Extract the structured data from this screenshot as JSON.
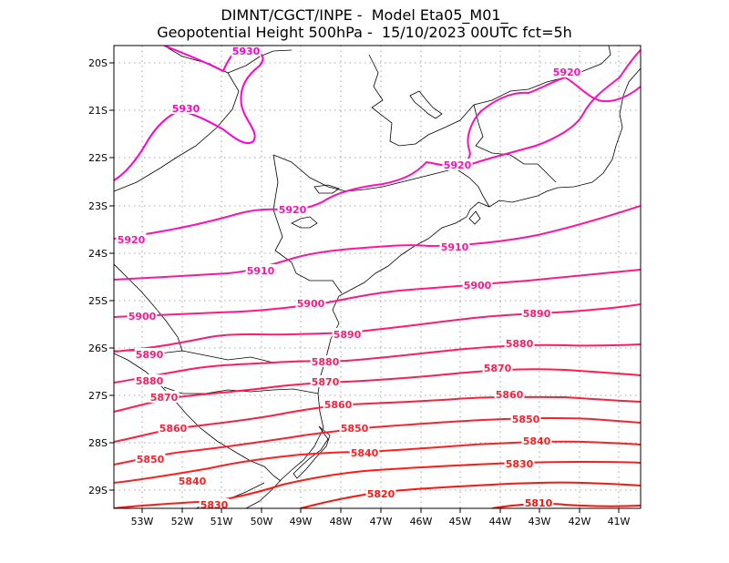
{
  "header": {
    "line1": "DIMNT/CGCT/INPE -  Model Eta05_M01_",
    "line2": "Geopotential Height 500hPa -  15/10/2023 00UTC fct=5h"
  },
  "axes": {
    "lon_labels": [
      "53W",
      "52W",
      "51W",
      "50W",
      "49W",
      "48W",
      "47W",
      "46W",
      "45W",
      "44W",
      "43W",
      "42W",
      "41W"
    ],
    "lat_labels": [
      "20S",
      "21S",
      "22S",
      "23S",
      "24S",
      "25S",
      "26S",
      "27S",
      "28S",
      "29S"
    ]
  },
  "colors": {
    "c5930": "#ff00cc",
    "c5920": "#ff10b5",
    "c5910": "#ff159e",
    "c5900": "#ff1887",
    "c5890": "#ff1a72",
    "c5880": "#ff1c5f",
    "c5870": "#ff1d4d",
    "c5860": "#ff1e3c",
    "c5850": "#ff1f2c",
    "c5840": "#ff1f1f",
    "c5830": "#ff1a14",
    "c5820": "#ff150c",
    "c5810": "#ff1006"
  },
  "contours": [
    {
      "level": "5930",
      "labels": [
        "5930",
        "5930"
      ]
    },
    {
      "level": "5920",
      "labels": [
        "5920",
        "5920",
        "5920",
        "5920"
      ]
    },
    {
      "level": "5910",
      "labels": [
        "5910",
        "5910"
      ]
    },
    {
      "level": "5900",
      "labels": [
        "5900",
        "5900",
        "5900"
      ]
    },
    {
      "level": "5890",
      "labels": [
        "5890",
        "5890",
        "5890"
      ]
    },
    {
      "level": "5880",
      "labels": [
        "5880",
        "5880",
        "5880"
      ]
    },
    {
      "level": "5870",
      "labels": [
        "5870",
        "5870",
        "5870"
      ]
    },
    {
      "level": "5860",
      "labels": [
        "5860",
        "5860",
        "5860"
      ]
    },
    {
      "level": "5850",
      "labels": [
        "5850",
        "5850",
        "5850"
      ]
    },
    {
      "level": "5840",
      "labels": [
        "5840",
        "5840",
        "5840"
      ]
    },
    {
      "level": "5830",
      "labels": [
        "5830",
        "5830"
      ]
    },
    {
      "level": "5820",
      "labels": [
        "5820"
      ]
    },
    {
      "level": "5810",
      "labels": [
        "5810"
      ]
    }
  ]
}
